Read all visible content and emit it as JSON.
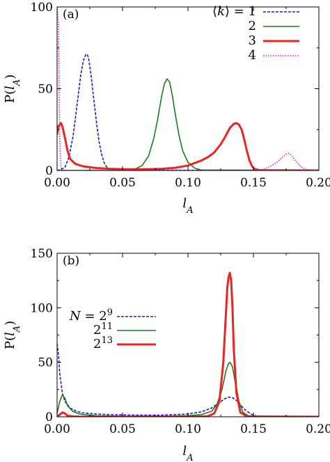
{
  "chart_data": [
    {
      "type": "line",
      "panel_label": "(a)",
      "xlabel": "l_A",
      "ylabel": "P(l_A)",
      "xlim": [
        0.0,
        0.2
      ],
      "ylim": [
        0,
        100
      ],
      "xticks": [
        "0.00",
        "0.05",
        "0.10",
        "0.15",
        "0.20"
      ],
      "yticks": [
        "0",
        "50",
        "100"
      ],
      "grid": false,
      "legend_position": "top-right",
      "legend_prefix": "⟨k⟩ =",
      "series": [
        {
          "name": "1",
          "color": "#1a1acc",
          "style": "dashed",
          "width": 1.6,
          "x": [
            0.0,
            0.003,
            0.006,
            0.009,
            0.012,
            0.014,
            0.016,
            0.018,
            0.02,
            0.022,
            0.023,
            0.024,
            0.026,
            0.028,
            0.03,
            0.032,
            0.034,
            0.036,
            0.038,
            0.04,
            0.045,
            0.2
          ],
          "y": [
            0,
            0.5,
            2,
            8,
            20,
            32,
            45,
            58,
            67,
            71,
            71,
            69,
            58,
            44,
            30,
            18,
            10,
            4.5,
            2,
            0.8,
            0.1,
            0
          ]
        },
        {
          "name": "2",
          "color": "#1e7a1e",
          "style": "solid",
          "width": 1.6,
          "x": [
            0.0,
            0.05,
            0.06,
            0.065,
            0.07,
            0.074,
            0.077,
            0.08,
            0.082,
            0.084,
            0.086,
            0.088,
            0.09,
            0.093,
            0.096,
            0.1,
            0.105,
            0.11,
            0.2
          ],
          "y": [
            0,
            0,
            1,
            3,
            9,
            20,
            32,
            46,
            53,
            56,
            54,
            46,
            36,
            22,
            12,
            5,
            1.5,
            0.3,
            0
          ]
        },
        {
          "name": "3",
          "color": "#ee2222",
          "style": "solid",
          "width": 3,
          "x": [
            0.0,
            0.001,
            0.003,
            0.004,
            0.006,
            0.008,
            0.01,
            0.014,
            0.02,
            0.03,
            0.04,
            0.05,
            0.06,
            0.07,
            0.08,
            0.09,
            0.1,
            0.11,
            0.115,
            0.12,
            0.125,
            0.128,
            0.132,
            0.135,
            0.137,
            0.139,
            0.141,
            0.143,
            0.145,
            0.147,
            0.149,
            0.151,
            0.155,
            0.2
          ],
          "y": [
            22,
            27,
            29,
            27,
            20,
            12,
            7,
            4,
            2.5,
            1.5,
            1,
            0.8,
            0.7,
            0.8,
            1,
            1.6,
            3,
            6,
            8,
            11,
            16,
            20,
            26,
            28.5,
            29,
            28,
            25,
            19,
            12,
            6,
            2.5,
            0.8,
            0.1,
            0
          ]
        },
        {
          "name": "4",
          "color": "#cc22cc",
          "style": "dotted",
          "width": 1.6,
          "x": [
            0.0,
            0.001,
            0.002,
            0.003,
            0.004,
            0.15,
            0.158,
            0.163,
            0.168,
            0.172,
            0.175,
            0.177,
            0.179,
            0.182,
            0.186,
            0.19,
            0.2
          ],
          "y": [
            100,
            90,
            20,
            2,
            0,
            0,
            0.8,
            2.5,
            5,
            8,
            10,
            10.5,
            9.5,
            6,
            2.5,
            0.6,
            0
          ]
        }
      ]
    },
    {
      "type": "line",
      "panel_label": "(b)",
      "xlabel": "l_A",
      "ylabel": "P(l_A)",
      "xlim": [
        0.0,
        0.2
      ],
      "ylim": [
        0,
        150
      ],
      "xticks": [
        "0.00",
        "0.05",
        "0.10",
        "0.15",
        "0.20"
      ],
      "yticks": [
        "0",
        "50",
        "100",
        "150"
      ],
      "grid": false,
      "legend_position": "middle-left",
      "legend_prefix": "N =",
      "series": [
        {
          "name": "2^9",
          "color": "#1a1acc",
          "style": "dashed",
          "width": 1.6,
          "x": [
            0.0,
            0.001,
            0.002,
            0.004,
            0.006,
            0.01,
            0.015,
            0.02,
            0.03,
            0.04,
            0.06,
            0.08,
            0.1,
            0.11,
            0.118,
            0.124,
            0.128,
            0.131,
            0.134,
            0.137,
            0.14,
            0.144,
            0.148,
            0.152,
            0.16,
            0.2
          ],
          "y": [
            67,
            58,
            40,
            22,
            14,
            8,
            5,
            3.5,
            2.5,
            2,
            1.5,
            1.5,
            2.5,
            4.5,
            8,
            13,
            16.5,
            18,
            17.5,
            15,
            11,
            6,
            2.5,
            0.8,
            0,
            0
          ]
        },
        {
          "name": "2^11",
          "color": "#1e7a1e",
          "style": "solid",
          "width": 1.6,
          "x": [
            0.0,
            0.002,
            0.004,
            0.006,
            0.008,
            0.012,
            0.016,
            0.02,
            0.03,
            0.05,
            0.08,
            0.1,
            0.11,
            0.118,
            0.122,
            0.126,
            0.129,
            0.131,
            0.132,
            0.134,
            0.136,
            0.139,
            0.142,
            0.146,
            0.15,
            0.2
          ],
          "y": [
            3,
            14,
            20,
            17,
            10,
            5,
            3,
            2,
            1,
            0.6,
            0.5,
            1,
            2,
            5,
            11,
            25,
            42,
            49,
            50,
            46,
            32,
            14,
            4,
            1,
            0.2,
            0
          ]
        },
        {
          "name": "2^13",
          "color": "#ee2222",
          "style": "solid",
          "width": 3,
          "x": [
            0.0,
            0.002,
            0.004,
            0.006,
            0.008,
            0.012,
            0.02,
            0.05,
            0.1,
            0.115,
            0.12,
            0.124,
            0.127,
            0.129,
            0.13,
            0.131,
            0.132,
            0.133,
            0.134,
            0.135,
            0.137,
            0.14,
            0.145,
            0.2
          ],
          "y": [
            0.5,
            2,
            4,
            3,
            1,
            0.3,
            0,
            0,
            0,
            0.5,
            3,
            14,
            50,
            95,
            118,
            128,
            132,
            125,
            100,
            62,
            22,
            4,
            0.3,
            0
          ]
        }
      ]
    }
  ]
}
